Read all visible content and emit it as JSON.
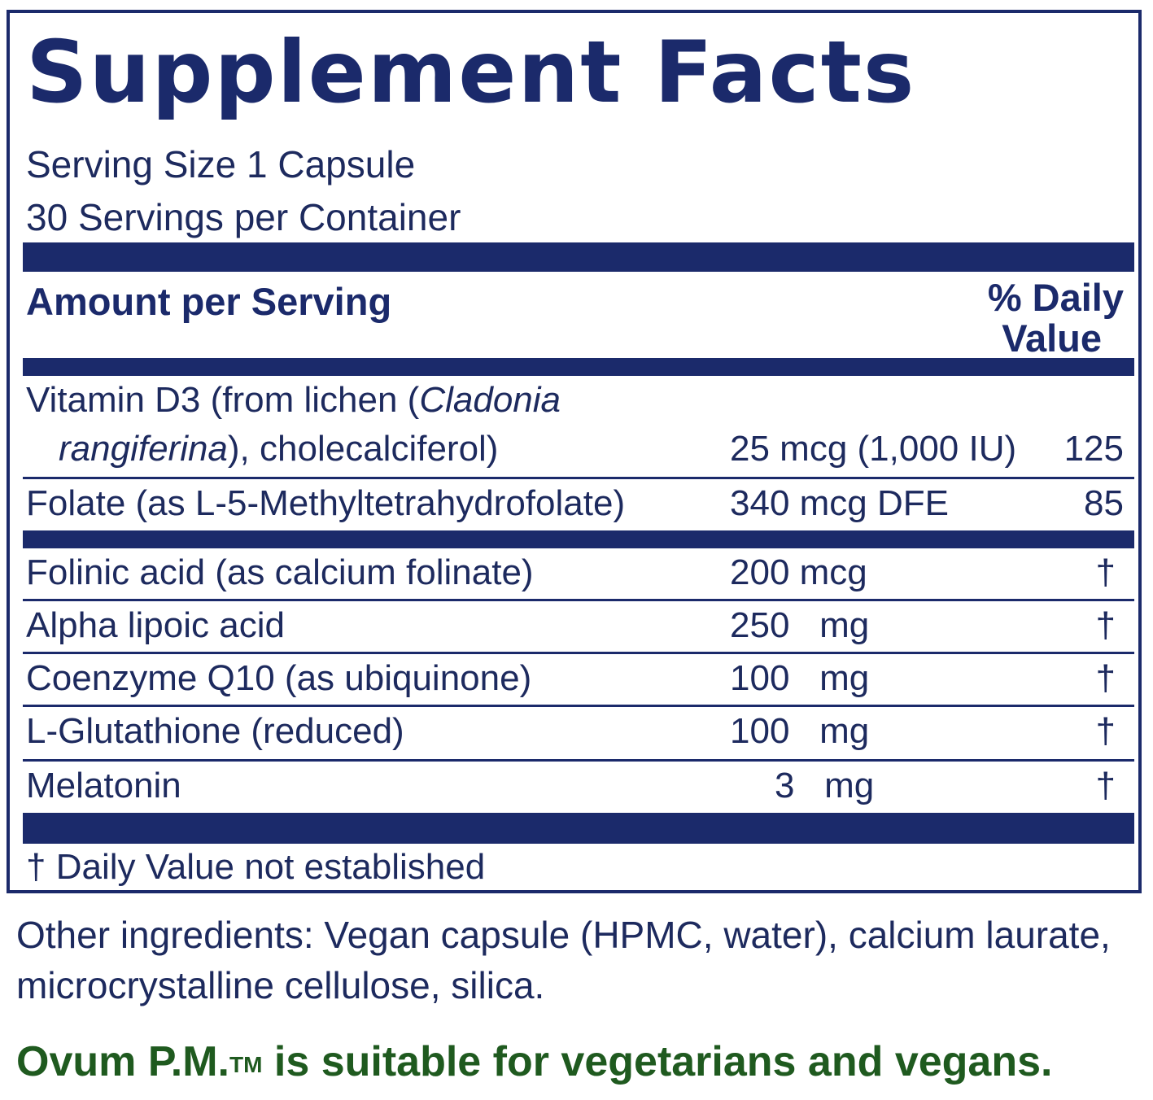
{
  "title": "Supplement Facts",
  "serving_size": "Serving Size 1 Capsule",
  "servings_per_container": "30 Servings per Container",
  "header": {
    "amount_label": "Amount per Serving",
    "dv_line1": "% Daily",
    "dv_line2": "Value"
  },
  "rows": [
    {
      "name_part1": "Vitamin D3 (from lichen (",
      "name_italic1": "Cladonia",
      "name_italic2": "rangiferina",
      "name_part2": "), cholecalciferol)",
      "amount": "25 mcg (1,000 IU)",
      "dv": "125"
    },
    {
      "name": "Folate (as L-5-Methyltetrahydrofolate)",
      "amount": "340 mcg DFE",
      "dv": "85"
    },
    {
      "name": "Folinic acid (as calcium folinate)",
      "amount": "200 mcg",
      "dv": "†"
    },
    {
      "name": "Alpha lipoic acid",
      "amount": "250   mg",
      "dv": "†"
    },
    {
      "name": "Coenzyme Q10 (as ubiquinone)",
      "amount": "100   mg",
      "dv": "†"
    },
    {
      "name": "L-Glutathione (reduced)",
      "amount": "100   mg",
      "dv": "†"
    },
    {
      "name": "Melatonin",
      "amount": "3   mg",
      "dv": "†"
    }
  ],
  "footnote": "† Daily Value not established",
  "other_ingredients": "Other ingredients: Vegan capsule (HPMC, water), calcium laurate, microcrystalline cellulose, silica.",
  "vegan_statement": {
    "product": "Ovum P.M.",
    "trademark": "TM",
    "text": " is suitable for vegetarians and vegans."
  },
  "colors": {
    "border": "#1b2a6b",
    "text": "#1d2a5e",
    "vegan_text": "#1f5a1f"
  }
}
